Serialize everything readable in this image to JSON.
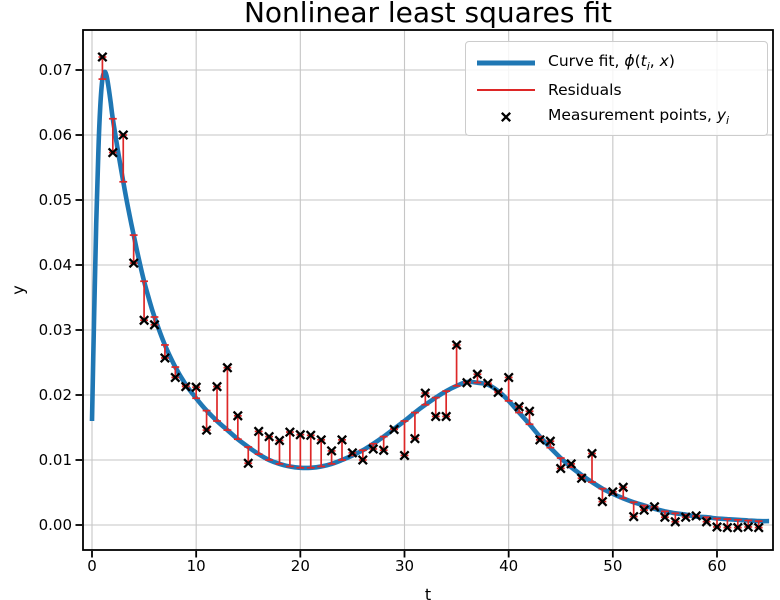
{
  "chart_data": {
    "type": "line+scatter+residuals",
    "title": "Nonlinear least squares fit",
    "xlabel": "t",
    "ylabel": "y",
    "xlim": [
      -0.864,
      65.376
    ],
    "ylim": [
      -0.003846,
      0.076154
    ],
    "grid": true,
    "xticks": {
      "values": [
        0,
        10,
        20,
        30,
        40,
        50,
        60
      ],
      "labels": [
        "0",
        "10",
        "20",
        "30",
        "40",
        "50",
        "60"
      ]
    },
    "yticks": {
      "values": [
        0.0,
        0.01,
        0.02,
        0.03,
        0.04,
        0.05,
        0.06,
        0.07
      ],
      "labels": [
        "0.00",
        "0.01",
        "0.02",
        "0.03",
        "0.04",
        "0.05",
        "0.06",
        "0.07"
      ]
    },
    "colors": {
      "curve": "#1f77b4",
      "residual": "#dd2727",
      "marker": "#000000",
      "grid": "#c6c6c6",
      "spine": "#000000",
      "legend_edge": "#cccccc"
    },
    "legend": {
      "position": "upper right",
      "items": [
        {
          "swatch": "thick-line",
          "parts": [
            {
              "text": "Curve fit, "
            },
            {
              "text": "ϕ",
              "italic": true
            },
            {
              "text": "("
            },
            {
              "text": "t",
              "italic": true
            },
            {
              "text": "i",
              "sub": true
            },
            {
              "text": ", "
            },
            {
              "text": "x",
              "italic": true
            },
            {
              "text": ")"
            }
          ]
        },
        {
          "swatch": "thin-line",
          "parts": [
            {
              "text": "Residuals"
            }
          ]
        },
        {
          "swatch": "x-marker",
          "parts": [
            {
              "text": "Measurement points, "
            },
            {
              "text": "y",
              "italic": true
            },
            {
              "text": "i",
              "sub": true
            }
          ]
        }
      ]
    },
    "curve_fit": [
      [
        0,
        0.016
      ],
      [
        0.2,
        0.032
      ],
      [
        0.4,
        0.0463
      ],
      [
        0.6,
        0.0571
      ],
      [
        0.8,
        0.0645
      ],
      [
        1,
        0.0686
      ],
      [
        1.2,
        0.0697
      ],
      [
        1.4,
        0.0691
      ],
      [
        1.6,
        0.0672
      ],
      [
        1.8,
        0.0649
      ],
      [
        2,
        0.0625
      ],
      [
        2.5,
        0.0575
      ],
      [
        3,
        0.0528
      ],
      [
        3.5,
        0.0485
      ],
      [
        4,
        0.0446
      ],
      [
        4.5,
        0.0409
      ],
      [
        5,
        0.0375
      ],
      [
        5.5,
        0.0346
      ],
      [
        6,
        0.032
      ],
      [
        7,
        0.0277
      ],
      [
        8,
        0.0243
      ],
      [
        9,
        0.0216
      ],
      [
        10,
        0.0195
      ],
      [
        11,
        0.0176
      ],
      [
        12,
        0.016
      ],
      [
        13,
        0.0146
      ],
      [
        14,
        0.0132
      ],
      [
        15,
        0.012
      ],
      [
        16,
        0.0109
      ],
      [
        17,
        0.01
      ],
      [
        18,
        0.0094
      ],
      [
        19,
        0.009
      ],
      [
        20,
        0.0088
      ],
      [
        21,
        0.0088
      ],
      [
        22,
        0.009
      ],
      [
        23,
        0.0094
      ],
      [
        24,
        0.01
      ],
      [
        25,
        0.0107
      ],
      [
        26,
        0.0115
      ],
      [
        27,
        0.0125
      ],
      [
        28,
        0.0136
      ],
      [
        29,
        0.0148
      ],
      [
        30,
        0.016
      ],
      [
        31,
        0.0173
      ],
      [
        32,
        0.0185
      ],
      [
        33,
        0.0196
      ],
      [
        34,
        0.0206
      ],
      [
        35,
        0.0214
      ],
      [
        36,
        0.022
      ],
      [
        37,
        0.0219
      ],
      [
        38,
        0.0216
      ],
      [
        39,
        0.0206
      ],
      [
        40,
        0.0191
      ],
      [
        41,
        0.0173
      ],
      [
        42,
        0.0155
      ],
      [
        43,
        0.0136
      ],
      [
        44,
        0.0119
      ],
      [
        45,
        0.0103
      ],
      [
        46,
        0.0089
      ],
      [
        47,
        0.0077
      ],
      [
        48,
        0.0066
      ],
      [
        49,
        0.0056
      ],
      [
        50,
        0.0048
      ],
      [
        51,
        0.0041
      ],
      [
        52,
        0.0035
      ],
      [
        53,
        0.003
      ],
      [
        54,
        0.0025
      ],
      [
        55,
        0.0021
      ],
      [
        56,
        0.0018
      ],
      [
        57,
        0.0016
      ],
      [
        58,
        0.0013
      ],
      [
        59,
        0.0012
      ],
      [
        60,
        0.001
      ],
      [
        61,
        0.0009
      ],
      [
        62,
        0.0008
      ],
      [
        63,
        0.0007
      ],
      [
        64,
        0.0006
      ],
      [
        65,
        0.0006
      ]
    ],
    "measurements": {
      "t": [
        1,
        2,
        3,
        4,
        5,
        6,
        7,
        8,
        9,
        10,
        11,
        12,
        13,
        14,
        15,
        16,
        17,
        18,
        19,
        20,
        21,
        22,
        23,
        24,
        25,
        26,
        27,
        28,
        29,
        30,
        31,
        32,
        33,
        34,
        35,
        36,
        37,
        38,
        39,
        40,
        41,
        42,
        43,
        44,
        45,
        46,
        47,
        48,
        49,
        50,
        51,
        52,
        53,
        54,
        55,
        56,
        57,
        58,
        59,
        60,
        61,
        62,
        63,
        64
      ],
      "y": [
        0.072,
        0.0573,
        0.06,
        0.0403,
        0.0315,
        0.0308,
        0.0257,
        0.0227,
        0.0213,
        0.0212,
        0.0146,
        0.0213,
        0.0242,
        0.0168,
        0.0095,
        0.0144,
        0.0136,
        0.013,
        0.0143,
        0.0139,
        0.0138,
        0.0131,
        0.0114,
        0.0131,
        0.0111,
        0.01,
        0.0117,
        0.0115,
        0.0147,
        0.0107,
        0.0133,
        0.0203,
        0.0167,
        0.0167,
        0.0277,
        0.0219,
        0.0232,
        0.0218,
        0.0204,
        0.0227,
        0.0182,
        0.0175,
        0.0131,
        0.0129,
        0.0087,
        0.0094,
        0.0072,
        0.011,
        0.0036,
        0.0051,
        0.0058,
        0.0013,
        0.0023,
        0.0028,
        0.0012,
        0.0005,
        0.0012,
        0.0014,
        0.0005,
        -0.0003,
        -0.0004,
        -0.0004,
        -0.0003,
        -0.0004
      ],
      "fit": [
        0.0686,
        0.0625,
        0.0528,
        0.0446,
        0.0375,
        0.032,
        0.0277,
        0.0243,
        0.0216,
        0.0195,
        0.0176,
        0.016,
        0.0146,
        0.0132,
        0.012,
        0.0109,
        0.01,
        0.0094,
        0.009,
        0.0088,
        0.0088,
        0.009,
        0.0094,
        0.01,
        0.0107,
        0.0115,
        0.0125,
        0.0136,
        0.0148,
        0.016,
        0.0173,
        0.0185,
        0.0196,
        0.0206,
        0.0214,
        0.022,
        0.0219,
        0.0216,
        0.0206,
        0.0191,
        0.0173,
        0.0155,
        0.0136,
        0.0119,
        0.0103,
        0.0089,
        0.0077,
        0.0066,
        0.0056,
        0.0048,
        0.0041,
        0.0035,
        0.003,
        0.0025,
        0.0021,
        0.0018,
        0.0016,
        0.0013,
        0.0012,
        0.001,
        0.0009,
        0.0008,
        0.0007,
        0.0006
      ]
    }
  }
}
